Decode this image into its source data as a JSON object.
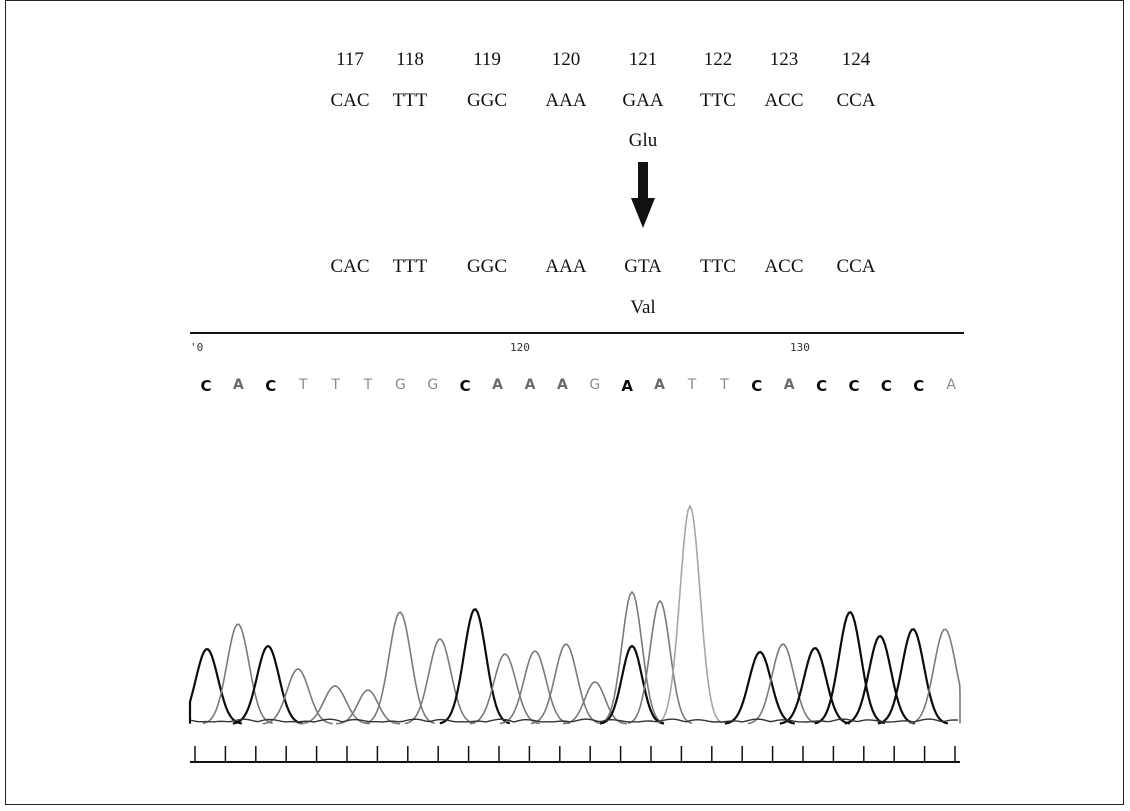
{
  "codon_positions": [
    "117",
    "118",
    "119",
    "120",
    "121",
    "122",
    "123",
    "124"
  ],
  "wildtype": {
    "codons": [
      "CAC",
      "TTT",
      "GGC",
      "AAA",
      "GAA",
      "TTC",
      "ACC",
      "CCA"
    ],
    "amino_acid": "Glu"
  },
  "mutant": {
    "codons": [
      "CAC",
      "TTT",
      "GGC",
      "AAA",
      "GTA",
      "TTC",
      "ACC",
      "CCA"
    ],
    "amino_acid": "Val"
  },
  "chromatogram": {
    "position_labels": [
      "'0",
      "120",
      "130"
    ],
    "base_calls": [
      "C",
      "A",
      "C",
      "T",
      "T",
      "T",
      "G",
      "G",
      "C",
      "A",
      "A",
      "A",
      "G",
      "A",
      "A",
      "T",
      "T",
      "C",
      "A",
      "C",
      "C",
      "C",
      "C",
      "A"
    ],
    "call_emphasis": [
      "dark",
      "normal",
      "dark",
      "light",
      "light",
      "light",
      "light",
      "light",
      "dark",
      "normal",
      "normal",
      "normal",
      "light",
      "dark",
      "normal",
      "light",
      "light",
      "dark",
      "normal",
      "dark",
      "dark",
      "dark",
      "dark",
      "light"
    ],
    "trace_colors": {
      "dark": "#0d0d0d",
      "medium": "#7a7a7a",
      "light": "#a6a6a6"
    }
  }
}
